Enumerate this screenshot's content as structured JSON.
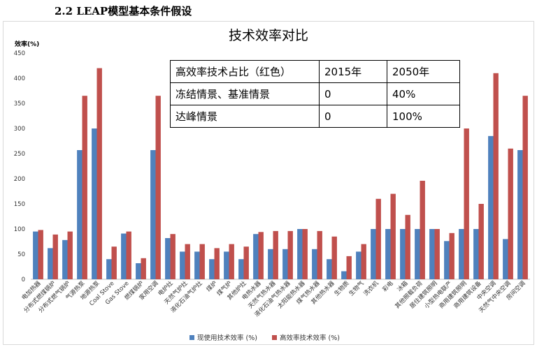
{
  "heading": "2.2 LEAP模型基本条件假设",
  "table": [
    [
      "高效率技术占比（红色）",
      "2015年",
      "2050年"
    ],
    [
      "冻结情景、基准情景",
      "0",
      "40%"
    ],
    [
      "达峰情景",
      "0",
      "100%"
    ]
  ],
  "colors": {
    "current": "#4f81bd",
    "high": "#c0504d",
    "grid": "#d9d9d9",
    "axis": "#bfbfbf"
  },
  "chart_data": {
    "type": "bar",
    "title": "技术效率对比",
    "ylabel": "效率(%)",
    "ylim": [
      0,
      450
    ],
    "yticks": [
      0,
      50,
      100,
      150,
      200,
      250,
      300,
      350,
      400,
      450
    ],
    "grid": false,
    "legend": "bottom",
    "categories": [
      "电加热器",
      "分布式燃煤锅炉",
      "分布式燃气锅炉",
      "气源热泵",
      "地源热泵",
      "Coal Stove",
      "Gas Stove",
      "燃煤锅炉",
      "家用空调",
      "电炉灶",
      "天然气炉灶",
      "液化石油气炉灶",
      "煤炉",
      "煤气炉",
      "其他炉灶",
      "电热水器",
      "天然气热水器",
      "液化石油气热水器",
      "太阳能热水器",
      "煤气热水器",
      "其他热水器",
      "生物质",
      "生物气",
      "洗衣机",
      "彩电",
      "冰箱",
      "其他照载负荷",
      "居住建筑照明",
      "小型热电联产",
      "商用建筑照明",
      "商用建筑设备",
      "中央空调",
      "天然气中央空调",
      "房间空调"
    ],
    "series": [
      {
        "name": "现使用技术效率 (%)",
        "color": "#4f81bd",
        "values": [
          95,
          62,
          78,
          257,
          300,
          40,
          91,
          32,
          257,
          82,
          55,
          55,
          40,
          55,
          40,
          90,
          60,
          60,
          100,
          60,
          40,
          16,
          55,
          100,
          100,
          100,
          100,
          100,
          76,
          100,
          100,
          285,
          80,
          257
        ]
      },
      {
        "name": "高效率技术效率 (%)",
        "color": "#c0504d",
        "values": [
          98,
          89,
          95,
          365,
          420,
          65,
          95,
          42,
          365,
          90,
          70,
          70,
          62,
          70,
          65,
          94,
          96,
          96,
          100,
          96,
          85,
          46,
          70,
          160,
          170,
          128,
          196,
          100,
          92,
          300,
          150,
          410,
          260,
          365
        ]
      }
    ]
  }
}
